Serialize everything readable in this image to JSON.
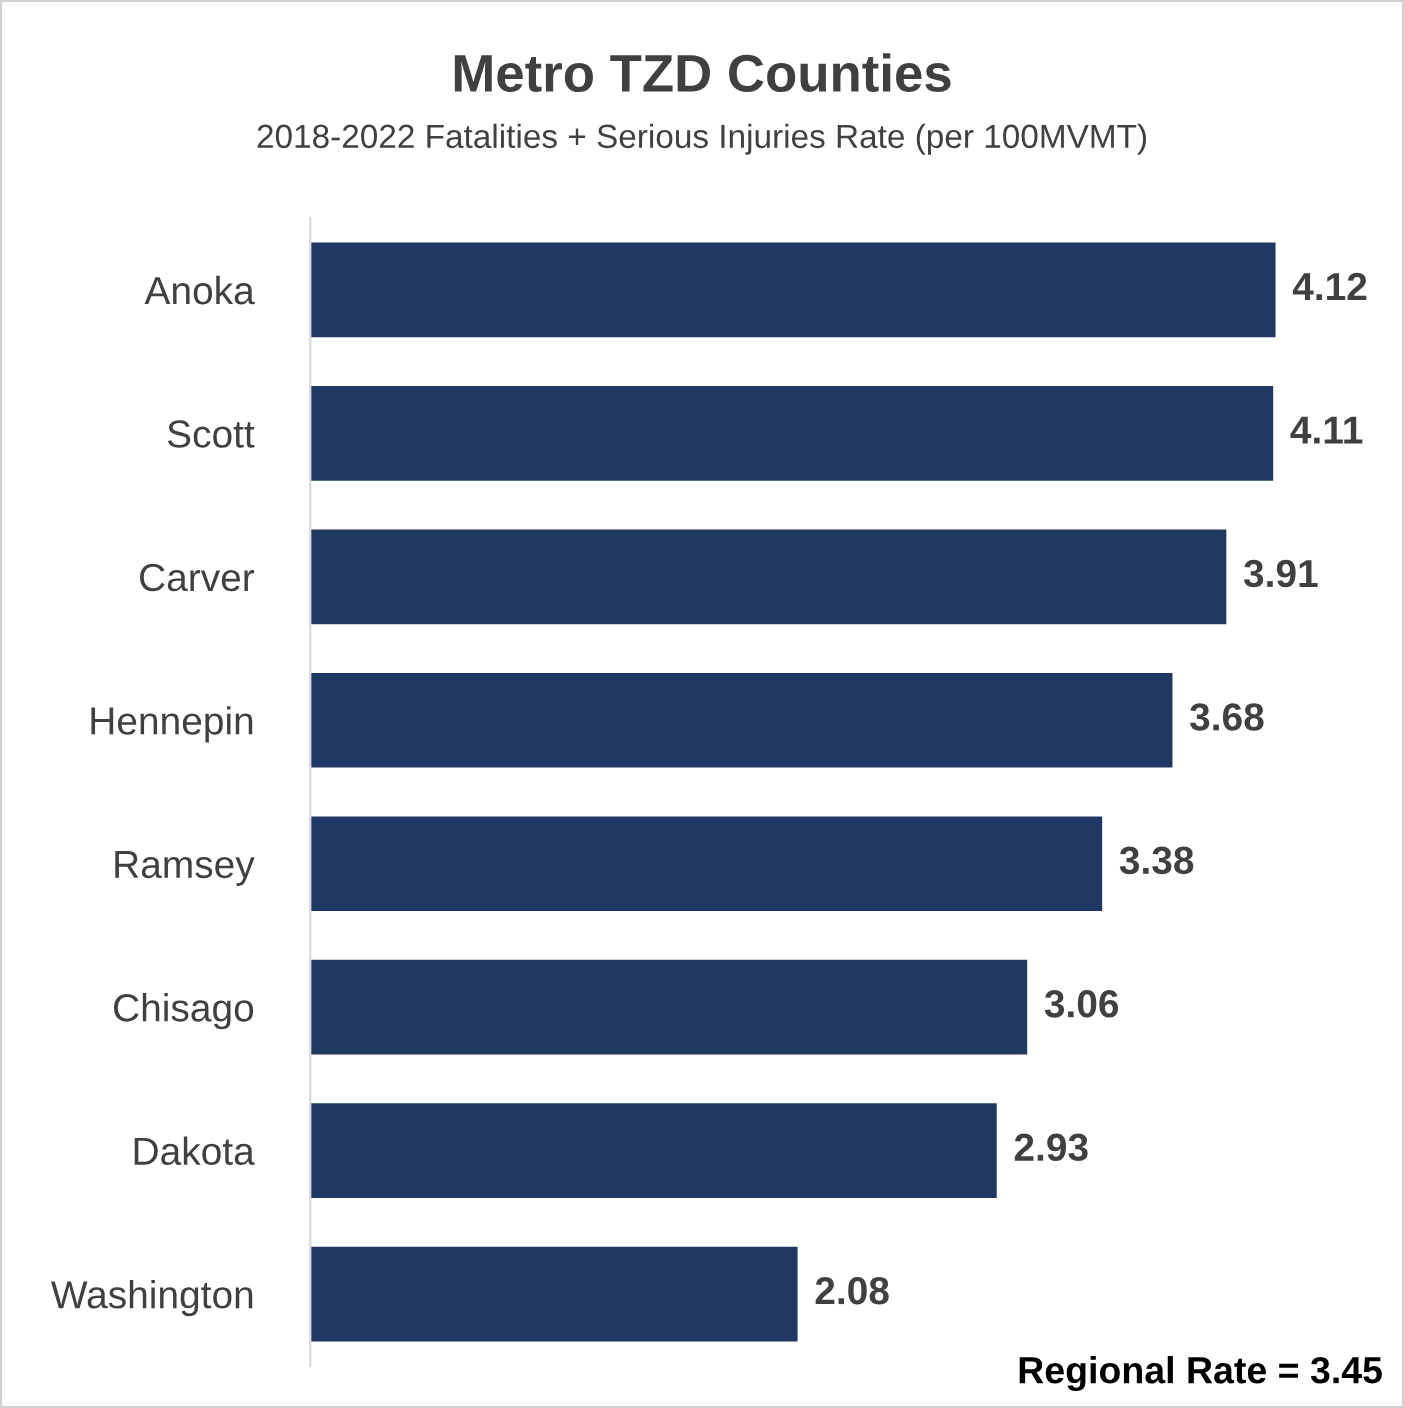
{
  "chart_data": {
    "type": "bar",
    "orientation": "horizontal",
    "title": "Metro TZD Counties",
    "subtitle": "2018-2022 Fatalities + Serious Injuries Rate (per 100MVMT)",
    "categories": [
      "Anoka",
      "Scott",
      "Carver",
      "Hennepin",
      "Ramsey",
      "Chisago",
      "Dakota",
      "Washington"
    ],
    "values": [
      4.12,
      4.11,
      3.91,
      3.68,
      3.38,
      3.06,
      2.93,
      2.08
    ],
    "color": "#1f3864",
    "data_labels": true,
    "grid": false,
    "legend": false,
    "annotations": [
      "Regional Rate = 3.45"
    ]
  }
}
